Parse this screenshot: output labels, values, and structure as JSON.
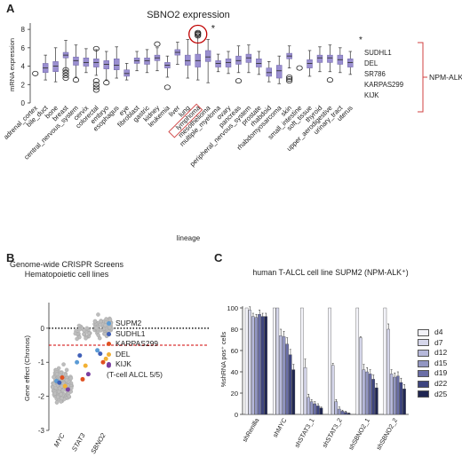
{
  "panels": {
    "a": "A",
    "b": "B",
    "c": "C"
  },
  "chart_data": [
    {
      "type": "box",
      "title": "SBNO2 expression",
      "xlabel": "lineage",
      "ylabel": "mRNA expression",
      "ylim": [
        0,
        8.3
      ],
      "yticks": [
        "0",
        "2",
        "4",
        "6",
        "8"
      ],
      "box_color": "#9a8fd0",
      "categories": [
        "adrenal_cortex",
        "bile_duct",
        "bone",
        "breast",
        "central_nervous_system",
        "cervix",
        "colorectal",
        "embryo",
        "esophagus",
        "eye",
        "fibroblast",
        "gastric",
        "kidney",
        "leukemia",
        "liver",
        "lung",
        "lymphoma",
        "mesothelioma",
        "multiple_myeloma",
        "ovary",
        "pancreas",
        "peripheral_nervous_system",
        "prostate",
        "rhabdoid",
        "rhabdomyosarcoma",
        "skin",
        "small_intestine",
        "soft_tissue",
        "thyroid",
        "upper_aerodigestive",
        "urinary_tract",
        "uterus"
      ],
      "boxes": [
        {
          "min": 3.2,
          "q1": 3.2,
          "median": 3.2,
          "q3": 3.2,
          "max": 3.2,
          "outliers": [
            3.2
          ]
        },
        {
          "min": 2.5,
          "q1": 3.3,
          "median": 3.8,
          "q3": 4.3,
          "max": 5.2,
          "outliers": []
        },
        {
          "min": 2.3,
          "q1": 3.4,
          "median": 4.0,
          "q3": 4.5,
          "max": 6.0,
          "outliers": []
        },
        {
          "min": 3.6,
          "q1": 4.9,
          "median": 5.2,
          "q3": 5.5,
          "max": 6.8,
          "outliers": [
            2.7,
            3.0,
            3.3,
            3.6
          ]
        },
        {
          "min": 2.8,
          "q1": 4.1,
          "median": 4.6,
          "q3": 5.0,
          "max": 6.3,
          "outliers": [
            2.5
          ]
        },
        {
          "min": 3.3,
          "q1": 4.0,
          "median": 4.4,
          "q3": 4.9,
          "max": 5.9,
          "outliers": []
        },
        {
          "min": 3.0,
          "q1": 3.9,
          "median": 4.4,
          "q3": 4.8,
          "max": 5.8,
          "outliers": [
            1.4,
            1.7,
            2.0,
            2.4,
            5.9
          ]
        },
        {
          "min": 2.5,
          "q1": 3.7,
          "median": 4.2,
          "q3": 4.6,
          "max": 5.6,
          "outliers": [
            2.2
          ]
        },
        {
          "min": 2.7,
          "q1": 3.6,
          "median": 4.1,
          "q3": 4.8,
          "max": 6.1,
          "outliers": []
        },
        {
          "min": 2.5,
          "q1": 2.9,
          "median": 3.2,
          "q3": 3.6,
          "max": 4.3,
          "outliers": []
        },
        {
          "min": 3.5,
          "q1": 4.3,
          "median": 4.6,
          "q3": 4.9,
          "max": 5.6,
          "outliers": []
        },
        {
          "min": 3.3,
          "q1": 4.2,
          "median": 4.6,
          "q3": 4.9,
          "max": 5.8,
          "outliers": []
        },
        {
          "min": 3.5,
          "q1": 4.6,
          "median": 4.9,
          "q3": 5.2,
          "max": 6.0,
          "outliers": [
            6.4
          ]
        },
        {
          "min": 2.8,
          "q1": 3.8,
          "median": 4.1,
          "q3": 4.4,
          "max": 5.1,
          "outliers": [
            1.7
          ]
        },
        {
          "min": 4.2,
          "q1": 5.2,
          "median": 5.5,
          "q3": 5.8,
          "max": 6.6,
          "outliers": []
        },
        {
          "min": 2.7,
          "q1": 4.1,
          "median": 4.6,
          "q3": 5.2,
          "max": 6.9,
          "outliers": []
        },
        {
          "min": 2.5,
          "q1": 3.9,
          "median": 4.6,
          "q3": 5.3,
          "max": 7.2,
          "outliers": [
            7.3,
            7.45,
            7.55,
            7.65
          ]
        },
        {
          "min": 2.2,
          "q1": 4.5,
          "median": 5.0,
          "q3": 5.7,
          "max": 6.9,
          "outliers": []
        },
        {
          "min": 3.4,
          "q1": 3.9,
          "median": 4.3,
          "q3": 4.6,
          "max": 5.3,
          "outliers": []
        },
        {
          "min": 3.2,
          "q1": 3.9,
          "median": 4.4,
          "q3": 4.8,
          "max": 5.6,
          "outliers": []
        },
        {
          "min": 3.3,
          "q1": 4.2,
          "median": 4.6,
          "q3": 5.1,
          "max": 6.2,
          "outliers": [
            2.4
          ]
        },
        {
          "min": 3.3,
          "q1": 4.4,
          "median": 4.9,
          "q3": 5.3,
          "max": 6.3,
          "outliers": []
        },
        {
          "min": 3.1,
          "q1": 3.9,
          "median": 4.3,
          "q3": 4.8,
          "max": 5.6,
          "outliers": []
        },
        {
          "min": 2.3,
          "q1": 2.9,
          "median": 3.3,
          "q3": 3.8,
          "max": 4.5,
          "outliers": []
        },
        {
          "min": 2.1,
          "q1": 2.7,
          "median": 3.5,
          "q3": 4.1,
          "max": 5.1,
          "outliers": []
        },
        {
          "min": 3.8,
          "q1": 4.8,
          "median": 5.1,
          "q3": 5.4,
          "max": 6.2,
          "outliers": [
            2.4,
            2.6,
            2.8
          ]
        },
        {
          "min": 3.8,
          "q1": 3.8,
          "median": 3.8,
          "q3": 3.8,
          "max": 3.8,
          "outliers": [
            3.8
          ]
        },
        {
          "min": 2.9,
          "q1": 3.8,
          "median": 4.3,
          "q3": 4.7,
          "max": 5.7,
          "outliers": []
        },
        {
          "min": 3.4,
          "q1": 4.4,
          "median": 4.9,
          "q3": 5.2,
          "max": 6.1,
          "outliers": []
        },
        {
          "min": 3.4,
          "q1": 4.4,
          "median": 4.9,
          "q3": 5.2,
          "max": 6.3,
          "outliers": [
            2.5
          ]
        },
        {
          "min": 3.3,
          "q1": 4.2,
          "median": 4.7,
          "q3": 5.2,
          "max": 6.0,
          "outliers": []
        },
        {
          "min": 3.1,
          "q1": 3.9,
          "median": 4.4,
          "q3": 4.8,
          "max": 5.6,
          "outliers": []
        }
      ],
      "highlight_box": "lymphoma",
      "asterisk": "*",
      "annotation_cells": [
        "SUDHL1",
        "DEL",
        "SR786",
        "KARPAS299",
        "KIJK"
      ],
      "annotation_label": "NPM-ALK⁺ ALCL"
    },
    {
      "type": "scatter",
      "title_lines": [
        "Genome-wide CRISPR Screens",
        "Hematopoietic cell lines"
      ],
      "ylabel": "Gene effect (Chronos)",
      "categories": [
        "MYC",
        "STAT3",
        "SBNO2"
      ],
      "ylim": [
        -3,
        0.7
      ],
      "yticks": [
        -3,
        -2,
        -1,
        0
      ],
      "reference_lines": [
        {
          "y": 0,
          "style": "black-dotted"
        },
        {
          "y": -0.5,
          "style": "red-dashed"
        }
      ],
      "point_color": "#bdbdbd",
      "highlighted_points": [
        {
          "name": "SUPM2",
          "color": "#5b9bd5",
          "values": [
            -1.55,
            -1.0,
            -0.65
          ]
        },
        {
          "name": "SUDHL1",
          "color": "#4060b8",
          "values": [
            -1.6,
            -0.8,
            -0.75
          ]
        },
        {
          "name": "KARPAS299",
          "color": "#e05020",
          "values": [
            -1.45,
            -1.5,
            -1.0
          ]
        },
        {
          "name": "DEL",
          "color": "#f2b134",
          "values": [
            -1.7,
            -1.1,
            -0.9
          ]
        },
        {
          "name": "KIJK",
          "color": "#7b3fa0",
          "values": [
            -1.8,
            -1.35,
            -1.1
          ]
        }
      ],
      "legend_note": "(T-cell ALCL 5/5)"
    },
    {
      "type": "bar",
      "title": "human T-ALCL cell line SUPM2 (NPM-ALK⁺)",
      "ylabel": "%shRNA pos⁺ cells",
      "ylim": [
        0,
        100
      ],
      "yticks": [
        0,
        20,
        40,
        60,
        80,
        100
      ],
      "categories": [
        "shRenilla",
        "shMYC",
        "shSTAT3_1",
        "shSTAT3_2",
        "shSBNO2_1",
        "shSBNO2_2"
      ],
      "series": [
        {
          "name": "d4",
          "color": "#f2f2f8",
          "values": [
            100,
            100,
            100,
            100,
            100,
            100
          ]
        },
        {
          "name": "d7",
          "color": "#d5d6ea",
          "values": [
            98,
            100,
            44,
            46,
            72,
            80
          ]
        },
        {
          "name": "d12",
          "color": "#b6b8da",
          "values": [
            92,
            74,
            16,
            12,
            42,
            38
          ]
        },
        {
          "name": "d15",
          "color": "#9296c2",
          "values": [
            91,
            73,
            12,
            5,
            40,
            35
          ]
        },
        {
          "name": "d19",
          "color": "#6a6ea6",
          "values": [
            94,
            66,
            10,
            3,
            38,
            36
          ]
        },
        {
          "name": "d22",
          "color": "#3e4580",
          "values": [
            92,
            56,
            8,
            2,
            33,
            30
          ]
        },
        {
          "name": "d25",
          "color": "#1f2652",
          "values": [
            92,
            42,
            6,
            1,
            25,
            24
          ]
        }
      ],
      "errors": [
        [
          0,
          3,
          3,
          3,
          4,
          3,
          3
        ],
        [
          0,
          0,
          6,
          5,
          6,
          5,
          5
        ],
        [
          0,
          8,
          3,
          2,
          2,
          2,
          1
        ],
        [
          0,
          2,
          2,
          2,
          1,
          1,
          0.5
        ],
        [
          0,
          1,
          5,
          4,
          4,
          4,
          4
        ],
        [
          0,
          5,
          4,
          4,
          4,
          4,
          4
        ]
      ]
    }
  ]
}
